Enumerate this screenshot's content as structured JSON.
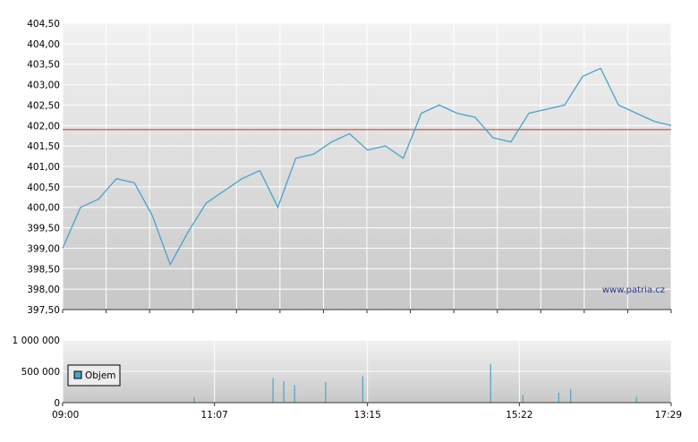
{
  "watermark": "www.patria.cz",
  "colors": {
    "price_line": "#4aa3c8",
    "reference_line": "#c0392b",
    "grid": "#ffffff",
    "bg_top": "#f2f2f2",
    "bg_bottom": "#c8c8c8",
    "volume_bar": "#4aa3c8"
  },
  "chart_data": [
    {
      "type": "line",
      "title": "",
      "series": [
        {
          "x": [
            "09:00",
            "09:15",
            "09:30",
            "09:45",
            "10:00",
            "10:15",
            "10:30",
            "10:45",
            "11:00",
            "11:15",
            "11:30",
            "11:45",
            "12:00",
            "12:15",
            "12:30",
            "12:45",
            "13:00",
            "13:15",
            "13:30",
            "13:45",
            "14:00",
            "14:15",
            "14:30",
            "14:45",
            "15:00",
            "15:15",
            "15:30",
            "15:45",
            "16:00",
            "16:15",
            "16:30",
            "16:45",
            "17:00",
            "17:15",
            "17:29"
          ],
          "values": [
            399.0,
            400.0,
            400.2,
            400.7,
            400.6,
            399.8,
            398.6,
            399.4,
            400.1,
            400.4,
            400.7,
            400.9,
            400.0,
            401.2,
            401.3,
            401.6,
            401.8,
            401.4,
            401.5,
            401.2,
            402.3,
            402.5,
            402.3,
            402.2,
            401.7,
            401.6,
            402.3,
            402.4,
            402.5,
            403.2,
            403.4,
            402.5,
            402.3,
            402.1,
            402.0
          ]
        }
      ],
      "reference_value": 401.9,
      "ylim": [
        397.5,
        404.5
      ],
      "y_ticks": [
        "404,50",
        "404,00",
        "403,50",
        "403,00",
        "402,50",
        "402,00",
        "401,50",
        "401,00",
        "400,50",
        "400,00",
        "399,50",
        "399,00",
        "398,50",
        "398,00",
        "397,50"
      ],
      "grid": true
    },
    {
      "type": "bar",
      "title": "",
      "legend": "Objem",
      "x_ticks": [
        "09:00",
        "11:07",
        "13:15",
        "15:22",
        "17:29"
      ],
      "y_ticks": [
        "1 000 000",
        "500 000",
        "0"
      ],
      "ylim": [
        0,
        1000000
      ],
      "spikes": [
        {
          "x": "10:50",
          "value": 90000
        },
        {
          "x": "11:56",
          "value": 390000
        },
        {
          "x": "12:05",
          "value": 340000
        },
        {
          "x": "12:14",
          "value": 280000
        },
        {
          "x": "12:40",
          "value": 330000
        },
        {
          "x": "13:11",
          "value": 420000
        },
        {
          "x": "14:58",
          "value": 620000
        },
        {
          "x": "15:25",
          "value": 120000
        },
        {
          "x": "15:55",
          "value": 160000
        },
        {
          "x": "16:05",
          "value": 210000
        },
        {
          "x": "17:00",
          "value": 90000
        }
      ]
    }
  ]
}
